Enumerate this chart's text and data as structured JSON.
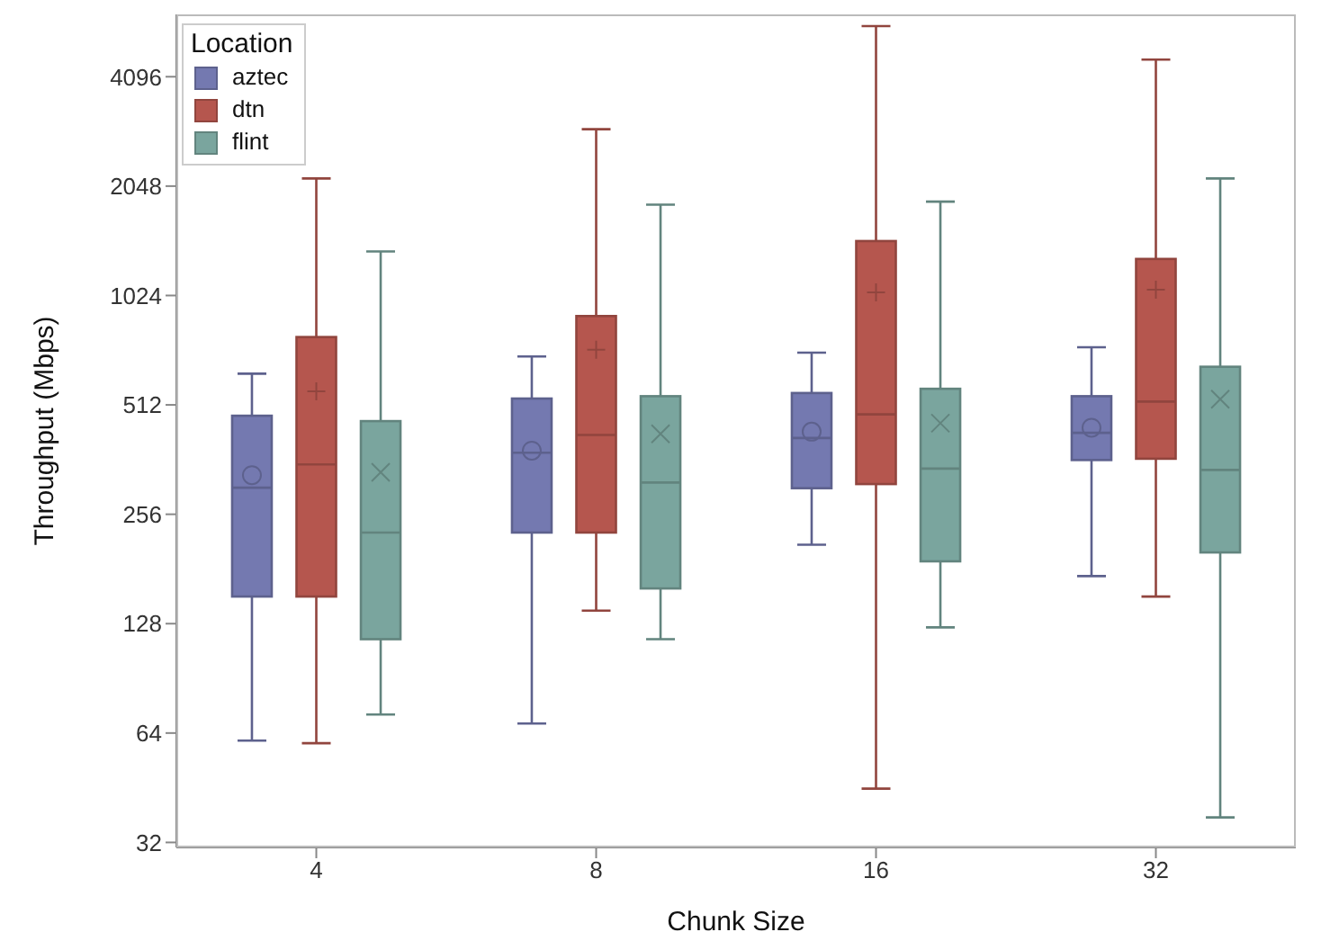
{
  "chart_data": {
    "type": "box",
    "xlabel": "Chunk Size",
    "ylabel": "Throughput (Mbps)",
    "legend_title": "Location",
    "legend": "top left",
    "log": "y",
    "categories": [
      "4",
      "8",
      "16",
      "32"
    ],
    "ylim": [
      31,
      6080
    ],
    "yticks": [
      32,
      64,
      128,
      256,
      512,
      1024,
      2048,
      4096
    ],
    "series": [
      {
        "name": "aztec",
        "color": "#7479b0",
        "marker": "circle",
        "boxes": [
          {
            "low": 61,
            "q1": 152,
            "median": 303,
            "q3": 478,
            "high": 624,
            "mean": 328
          },
          {
            "low": 68,
            "q1": 228,
            "median": 378,
            "q3": 533,
            "high": 696,
            "mean": 383
          },
          {
            "low": 211,
            "q1": 302,
            "median": 415,
            "q3": 552,
            "high": 713,
            "mean": 432
          },
          {
            "low": 173,
            "q1": 361,
            "median": 429,
            "q3": 541,
            "high": 738,
            "mean": 443
          }
        ]
      },
      {
        "name": "dtn",
        "color": "#b5564e",
        "marker": "plus",
        "boxes": [
          {
            "low": 60,
            "q1": 152,
            "median": 351,
            "q3": 787,
            "high": 2150,
            "mean": 558
          },
          {
            "low": 139,
            "q1": 228,
            "median": 423,
            "q3": 899,
            "high": 2938,
            "mean": 726
          },
          {
            "low": 45,
            "q1": 310,
            "median": 482,
            "q3": 1446,
            "high": 5645,
            "mean": 1044
          },
          {
            "low": 152,
            "q1": 364,
            "median": 523,
            "q3": 1291,
            "high": 4567,
            "mean": 1063
          }
        ]
      },
      {
        "name": "flint",
        "color": "#7aa59e",
        "marker": "cross",
        "boxes": [
          {
            "low": 72,
            "q1": 116,
            "median": 228,
            "q3": 462,
            "high": 1354,
            "mean": 334
          },
          {
            "low": 116,
            "q1": 160,
            "median": 313,
            "q3": 541,
            "high": 1821,
            "mean": 426
          },
          {
            "low": 125,
            "q1": 190,
            "median": 342,
            "q3": 567,
            "high": 1856,
            "mean": 456
          },
          {
            "low": 37.5,
            "q1": 201,
            "median": 339,
            "q3": 652,
            "high": 2150,
            "mean": 531
          }
        ]
      }
    ]
  }
}
